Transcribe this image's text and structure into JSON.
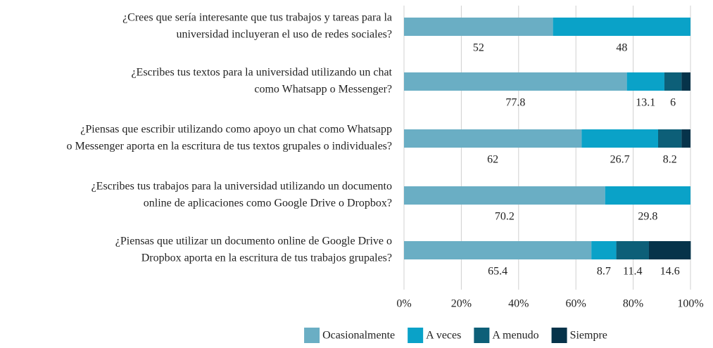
{
  "chart_data": {
    "type": "stacked_barh",
    "categories": [
      [
        "¿Crees que sería interesante que tus trabajos y tareas para la",
        "universidad incluyeran el uso de redes sociales?"
      ],
      [
        "¿Escribes tus textos para la universidad utilizando un chat",
        "como Whatsapp o Messenger?"
      ],
      [
        "¿Piensas que escribir utilizando como apoyo un chat como Whatsapp",
        "o Messenger aporta en la escritura de tus textos grupales o individuales?"
      ],
      [
        "¿Escribes tus trabajos para la universidad utilizando un documento",
        "online de aplicaciones como Google Drive o Dropbox?"
      ],
      [
        "¿Piensas que utilizar un documento online de Google Drive o",
        "Dropbox aporta en la escritura de tus trabajos grupales?"
      ]
    ],
    "series": [
      {
        "name": "Ocasionalmente",
        "color": "#6aaec4",
        "values": [
          52,
          77.8,
          62,
          70.2,
          65.4
        ],
        "value_labels": [
          "52",
          "77.8",
          "62",
          "70.2",
          "65.4"
        ]
      },
      {
        "name": "A veces",
        "color": "#0aa2c8",
        "values": [
          48,
          13.1,
          26.7,
          29.8,
          8.7
        ],
        "value_labels": [
          "48",
          "13.1",
          "26.7",
          "29.8",
          "8.7"
        ]
      },
      {
        "name": "A menudo",
        "color": "#0d5f78",
        "values": [
          null,
          6,
          8.2,
          null,
          11.4
        ],
        "value_labels": [
          null,
          "6",
          "8.2",
          null,
          "11.4"
        ]
      },
      {
        "name": "Siempre",
        "color": "#06334a",
        "values": [
          null,
          3.1,
          3.1,
          null,
          14.6
        ],
        "value_labels": [
          null,
          null,
          null,
          null,
          "14.6"
        ]
      }
    ],
    "xlim": [
      0,
      100
    ],
    "xticks": [
      {
        "value": 0,
        "label": "0%"
      },
      {
        "value": 20,
        "label": "20%"
      },
      {
        "value": 40,
        "label": "40%"
      },
      {
        "value": 60,
        "label": "60%"
      },
      {
        "value": 80,
        "label": "80%"
      },
      {
        "value": 100,
        "label": "100%"
      }
    ],
    "grid": true,
    "legend": "bottom"
  }
}
